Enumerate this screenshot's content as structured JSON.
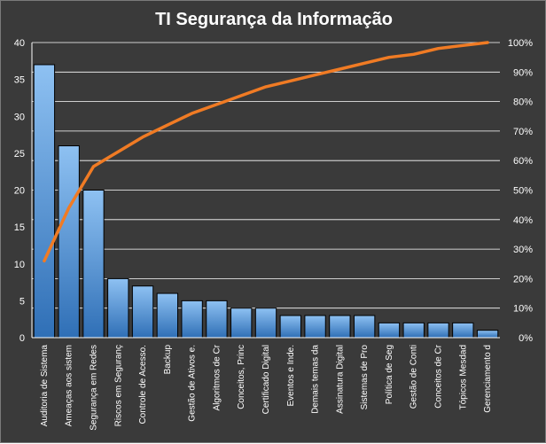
{
  "chart_data": {
    "type": "bar",
    "title": "TI Segurança  da Informação",
    "categories": [
      "Auditoria de Sistema",
      "Ameaças aos sistem",
      "Segurança em Redes",
      "Riscos em Seguranç",
      "Controle de Acesso.",
      "Backup",
      "Gestão de Ativos e.",
      "Algoritmos de Cr",
      "Conceitos, Princ",
      "Certificado Digital",
      "Eventos e Inde.",
      "Demais temas da",
      "Assinatura Digital",
      "Sistemas de Pro",
      "Política de Seg",
      "Gestão de Conti",
      "Conceitos de Cr",
      "Tópicos Mesdad",
      "Gerenciamento d"
    ],
    "series": [
      {
        "type": "bar",
        "values": [
          37,
          26,
          20,
          8,
          7,
          6,
          5,
          5,
          4,
          4,
          3,
          3,
          3,
          3,
          2,
          2,
          2,
          2,
          1
        ]
      },
      {
        "type": "line",
        "axis": "secondary",
        "unit": "%",
        "values": [
          26,
          44,
          58,
          63,
          68,
          72,
          76,
          79,
          82,
          85,
          87,
          89,
          91,
          93,
          95,
          96,
          98,
          99,
          100
        ]
      }
    ],
    "ylim": [
      0,
      40
    ],
    "y_ticks": [
      "0",
      "5",
      "10",
      "15",
      "20",
      "25",
      "30",
      "35",
      "40"
    ],
    "y2lim": [
      0,
      100
    ],
    "y2_ticks": [
      "0%",
      "10%",
      "20%",
      "30%",
      "40%",
      "50%",
      "60%",
      "70%",
      "80%",
      "90%",
      "100%"
    ],
    "grid": true,
    "legend": "none",
    "colors": {
      "background": "#3a3a3a",
      "bar_top": "#8ec1f2",
      "bar_bottom": "#2f6fb6",
      "bar_outline": "#000000",
      "line": "#f07b24",
      "grid": "#ffffff",
      "text": "#ffffff"
    }
  }
}
